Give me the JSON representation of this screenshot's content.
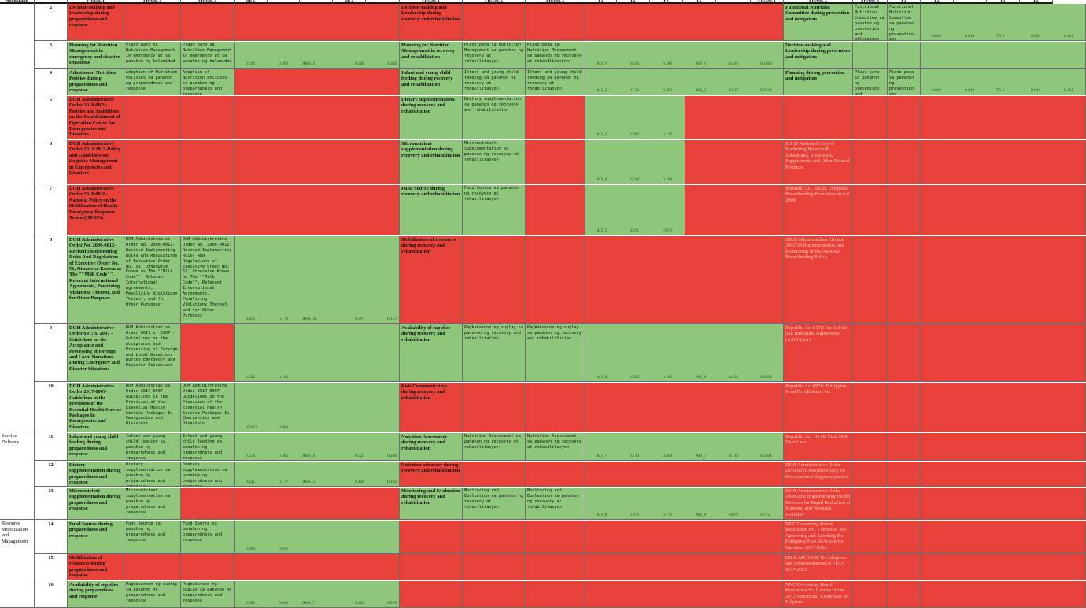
{
  "colors": {
    "green": "#8ec77b",
    "red": "#e8413a",
    "white": "#ffffff",
    "grid": "#6b6b6b",
    "header": "#ffffff"
  },
  "header": [
    "Subdomains",
    "",
    "PHASE 1",
    "PHASE 2",
    "PHASE 3",
    "Int 1",
    "",
    "",
    "Int 2",
    "",
    "PHASE 1",
    "PHASE 2",
    "PHASE 3",
    "P1",
    "P2",
    "P3",
    "P2",
    "",
    "PHASE 1",
    "PHASE 2",
    "PHASE 3",
    "P1",
    "P2",
    "",
    "P1",
    "P2"
  ],
  "subdomains": {
    "service": "Service Delivery",
    "resource": "Resource Mobilization and Management"
  },
  "rows": [
    {
      "n": "2",
      "c": "Decision-making and Leadership during preparedness and response",
      "p2": "",
      "p3": "",
      "v": [
        "",
        "",
        "",
        "",
        ""
      ],
      "d": "Decision-making and Leadership  during recovery and rehabilitation",
      "d2": "",
      "d3": "",
      "w": [
        "",
        "",
        "",
        "",
        "",
        ""
      ],
      "l": "Functional Nutrition Committee during prevention and mitigation",
      "l2": "Functional Nutrition Committee sa panahon ng prevention and mitigation",
      "l3": "Functional Nutrition Committee sa panahon ng prevention and mitigation",
      "x": [
        "0.643",
        "0.414",
        "TS 1",
        "0.649",
        "0.421"
      ]
    },
    {
      "n": "3",
      "c": "Planning for Nutrition Management in emergency and disaster situations",
      "p2": "Plano para sa Nutrition Management in emergency at sa panahon ng kalamidad",
      "p3": "Plano para sa Nutrition Management in emergency at sa panahon ng kalamidad",
      "v": [
        "0.620",
        "0.369",
        "AHS_2",
        "0.598",
        "0.350"
      ],
      "d": "Planning for Nutrition Management in recovery and rehabilitation",
      "d2": "Plano para sa Nutrition Management sa panahon ng recovery at rehabilitasyon",
      "d3": "Plano para sa Nutrition Management sa panahon ng recovery at rehabilitasyon",
      "w": [
        "AD_1",
        "0.435",
        "0.189",
        "AD_1",
        "0.435",
        "0.1889"
      ],
      "l": "Decision-making and Leadership during prevention and mitigation",
      "l2": "",
      "l3": "",
      "x": [
        "",
        "",
        "",
        "",
        ""
      ]
    },
    {
      "n": "4",
      "c": "Adoption  of Nutrition Policies during preparedness and response",
      "p2": "Adoption of Nutrition Policies sa panahon ng preparedness and response",
      "p3": "Adoption of Nutrition Policies sa panahon ng preparedness and response",
      "v": [
        "",
        "",
        "",
        "",
        ""
      ],
      "d": "Infant and young child feeding  during recovery and rehabilitation",
      "d2": "Infant and young child feeding  sa panahon ng recovery at rehabilitasyon",
      "d3": "Infant and young child feeding  sa panahon ng recovery at rehabilitasyon",
      "w": [
        "AD_2",
        "0.513",
        "0.263",
        "AD_2",
        "0.513",
        "0.2634"
      ],
      "l": "Planning during prevention and mitigation",
      "l2": "Plano para sa panahon ng prevention and mitigation",
      "l3": "Plano para sa panahon ng prevention and mitigation",
      "x": [
        "0.643",
        "0.414",
        "TS 1",
        "0.649",
        "0.421"
      ]
    },
    {
      "n": "5",
      "c": "DOH Administrative Order 2010-0029- Policies and Guidelines on the Establishment of Operation Center for Emergencies and Disasters",
      "p2": "",
      "p3": "",
      "v": [
        "",
        "",
        "",
        "",
        ""
      ],
      "d": "Dietary supplementation during recovery and rehabilitation",
      "d2": "Dietary supplementation  sa panahon ng recovery and rehabilitation",
      "d3": "",
      "w": [
        "AD_3",
        "0.363",
        "0.132",
        "",
        "",
        ""
      ],
      "l": "",
      "l2": "",
      "l3": "",
      "x": [
        "",
        "",
        "",
        "",
        ""
      ]
    },
    {
      "n": "6",
      "c": "DOH Administrative Order 2012-2013-Policy and Guidelines on Logistics Management in Emergencies and Disasters",
      "p2": "",
      "p3": "",
      "v": [
        "",
        "",
        "",
        "",
        ""
      ],
      "d": "Micronutrient supplementation  during recovery and rehabilitation",
      "d2": "Micronutrient supplementation  sa panahon ng recovery at rehabilitasyon",
      "d3": "",
      "w": [
        "AD_4",
        "0.328",
        "0.108",
        "",
        "",
        ""
      ],
      "l": "EO 51 National Code of Marketing Breastmilk, Substitutes, Breastmilk, Supplements and Other Related Products",
      "l2": "",
      "l3": "",
      "x": [
        "",
        "",
        "",
        "",
        ""
      ]
    },
    {
      "n": "7",
      "c": "DOH Administrative Order 2018-0018-National Policy on the Mobilization of Health Emergency Response Teams (HERTs)",
      "p2": "",
      "p3": "",
      "v": [
        "",
        "",
        "",
        "",
        ""
      ],
      "d": "Fund Source  during recovery and rehabilitation",
      "d2": "Fund Source sa panahon ng recovery at rehabilitasyon",
      "d3": "",
      "w": [
        "AD_5",
        "0.271",
        "0.073",
        "",
        "",
        ""
      ],
      "l": "Republic Act 10028: Expanded Breastfeeding Promotion Act of 2009",
      "l2": "",
      "l3": "",
      "x": [
        "",
        "",
        "",
        "",
        ""
      ]
    },
    {
      "n": "8",
      "c": "DOH Administrative Order No. 2006-0012-Revised Implementing Rules And Regulations of Executive Order No. 51, Otherwise Known as The \"\"Milk Code\"\", Relevant International Agreements, Penalizing Violations Thereof, and for Other Purposes",
      "p2": "DOH Administrative Order No. 2006-0012-Revised Implementing Rules And Regulations of Executive Order No. 51, Otherwise Known as The \"\"Milk Code\"\", Relevant International Agreements, Penalizing Violations Thereof, and for Other Purposes",
      "p3": "DOH Administrative Order No. 2006-0012-Revised Implementing Rules And Regulations of Executive Order No. 51, Otherwise Known as The \"\"Milk Code\"\", Relevant International Agreements, Penalizing Violations Thereof, and for Other Purposes",
      "v": [
        "0.423",
        "0.179",
        "AHS_3a",
        "0.397",
        "0.157"
      ],
      "d": "Mobilization of resources during recovery and rehabilitation",
      "d2": "",
      "d3": "",
      "w": [
        "",
        "",
        "",
        "",
        "",
        ""
      ],
      "l": "DILG Memorandum Circular 2002-54 Implementation and Monitoring of the National Breastfeeding Policy",
      "l2": "",
      "l3": "",
      "x": [
        "",
        "",
        "",
        "",
        ""
      ]
    },
    {
      "n": "9",
      "c": "DOH Administrative Order 0017 s. 2007 -Guidelines on the Acceptance and Processing of Foreign and Local Donations During Emergency and Disaster Situations",
      "p2": "DOH Administrative Order 0017 s. 2007 -Guidelines on the Acceptance and Processing of Foreign and Local Donations During Emergency and Disaster Situations",
      "p3": "",
      "v": [
        "0.321",
        "0.103",
        "",
        "",
        ""
      ],
      "d": "Availability of supplies during recovery and rehabilitation",
      "d2": "Pagkakaroon ng suplay sa panahon ng recovery and rehabilitation",
      "d3": "Pagkakaroon ng suplay sa panahon ng recovery and rehabilitation",
      "w": [
        "AD_6",
        "0.435",
        "0.189",
        "AD_6",
        "0.435",
        "0.1892"
      ],
      "l": "Republic Act 8172: An Act for Salt Iodization Nationwide (ASIN Law)",
      "l2": "",
      "l3": "",
      "x": [
        "",
        "",
        "",
        "",
        ""
      ]
    },
    {
      "n": "10",
      "c": "DOH Administrative Order 2017-0007-Guidelines in the Provision of the Essential Health Service Packages In Emergencies and Disasters",
      "p2": "DOH Administrative Order 2017-0007-Guidelines in the Provision of the Essential Health Service Packages In Emergencies and Disasters",
      "p3": "DOH Administrative Order 2017-0007-Guidelines in the Provision of the Essential Health Service Packages In Emergencies and Disasters",
      "v": [
        "-0.063",
        "0.004",
        "",
        "",
        ""
      ],
      "d": "Risk Communication during recovery and rehabilitation",
      "d2": "",
      "d3": "",
      "w": [
        "",
        "",
        "",
        "",
        "",
        ""
      ],
      "l": "Republic Act 8976: Philippine Food Fortification Act",
      "l2": "",
      "l3": "",
      "x": [
        "",
        "",
        "",
        "",
        ""
      ]
    },
    {
      "n": "11",
      "c": "Infant and young child feeding during preparedness and response",
      "p2": "Infant and young child feeding sa panahon ng preparedness and response",
      "p3": "Infant and young child feeding sa panahon ng preparedness and response",
      "v": [
        "0.550",
        "0.302",
        "AHS_4",
        "0.529",
        "0.280"
      ],
      "d": "Nutrition Assessment during recovery and rehabilitation",
      "d2": "Nutrition Assessment  sa panahon ng recovery at rehabilitasyon",
      "d3": "Nutrition Assessment  sa panahon ng recovery at rehabilitasyon",
      "w": [
        "AD_7",
        "0.714",
        "0.509",
        "AD_7",
        "0.714",
        "0.5091"
      ],
      "l": "Republic Act 11148: First 1000 Days Law",
      "l2": "",
      "l3": "",
      "x": [
        "",
        "",
        "",
        "",
        ""
      ]
    },
    {
      "n": "12",
      "c": "Dietary supplementation during preparedness and response",
      "p2": "Dietary supplementation sa panahon ng preparedness and response",
      "p3": "Dietary supplementation sa panahon ng preparedness and response",
      "v": [
        "0.421",
        "0.177",
        "AHS_5",
        "0.426",
        "0.182"
      ],
      "d": "Nutrition advocacy  during recovery and rehabilitation",
      "d2": "",
      "d3": "",
      "w": [
        "",
        "",
        "",
        "",
        "",
        ""
      ],
      "l": "DOH Administrative Order 2010-0010 Revised Policy on Micronutrient Supplementation",
      "l2": "",
      "l3": "",
      "x": [
        "",
        "",
        "",
        "",
        ""
      ]
    },
    {
      "n": "13",
      "c": "Micronutrient supplementation during preparedness and response",
      "p2": "Micronutrient supplementation sa panahon ng preparedness and response",
      "p3": "",
      "v": [
        "",
        "",
        "",
        "",
        ""
      ],
      "d": "Monitoring and Evaluation  during recovery and rehabilitation",
      "d2": "Monitoring and Evaluation sa panahon ng recovery at rehabilitasyon",
      "d3": "Monitoring and Evaluation sa panahon ng recovery at rehabilitasyon",
      "w": [
        "AD_8",
        "0.879",
        "0.772",
        "AD_8",
        "0.879",
        "0.772"
      ],
      "l": "DOH Administrative Order 2008-029: Implementing Health Reforms for Rapid Reduction of Maternal and Neonatal Mortality",
      "l2": "",
      "l3": "",
      "x": [
        "",
        "",
        "",
        "",
        ""
      ]
    },
    {
      "n": "14",
      "c": "Fund Source during preparedness and response",
      "p2": "Fund Source sa panahon ng preparedness and response",
      "p3": "Fund Source sa panahon ng preparedness and response",
      "v": [
        "0.269",
        "0.072",
        "",
        "",
        ""
      ],
      "d": "",
      "d2": "",
      "d3": "",
      "w": [
        "",
        "",
        "",
        "",
        "",
        ""
      ],
      "l": "NNC Governing Board Resolution No. 1 series of 2017 Approving and Adopting the Philippine Plan of Action for Nutrition 2017-2022",
      "l2": "",
      "l3": "",
      "x": [
        "",
        "",
        "",
        "",
        ""
      ]
    },
    {
      "n": "15",
      "c": "Mobilization of resources during preparedness and response",
      "p2": "",
      "p3": "",
      "v": [
        "",
        "",
        "",
        "",
        ""
      ],
      "d": "",
      "d2": "",
      "d3": "",
      "w": [
        "",
        "",
        "",
        "",
        "",
        ""
      ],
      "l": "DILG  MC 2018-42: Adoption and Implementation of PPAN 2017-2022",
      "l2": "",
      "l3": "",
      "x": [
        "",
        "",
        "",
        "",
        ""
      ]
    },
    {
      "n": "16",
      "c": "Availability of supplies during preparedness and response",
      "p2": "Pagkakaroon ng suplay sa panahon ng preparedness and response",
      "p3": "Pagkakaroon ng suplay sa panahon ng preparedness and response",
      "v": [
        "0.301",
        "0.090",
        "AHS_7",
        "0.282",
        "0.079"
      ],
      "d": "",
      "d2": "",
      "d3": "",
      "w": [
        "",
        "",
        "",
        "",
        "",
        ""
      ],
      "l": "NNC Governing Board Resolution No 6 series of the 2012 Nutritional Guidelines for Filipinos",
      "l2": "",
      "l3": "",
      "x": [
        "",
        "",
        "",
        "",
        ""
      ]
    }
  ],
  "fills": [
    {
      "c": "r",
      "p2": "r",
      "p3": "r",
      "i": "r",
      "d": "r",
      "d2": "r",
      "d3": "r",
      "w": "r",
      "l": "g",
      "l2": "g",
      "l3": "g",
      "x": "g"
    },
    {
      "c": "g",
      "p2": "g",
      "p3": "g",
      "i": "g",
      "d": "g",
      "d2": "g",
      "d3": "g",
      "w": "g",
      "l": "g",
      "l2": "g",
      "l3": "g",
      "x": "g"
    },
    {
      "c": "g",
      "p2": "g",
      "p3": "g",
      "i": "r",
      "d": "g",
      "d2": "g",
      "d3": "g",
      "w": "g",
      "l": "g",
      "l2": "g",
      "l3": "g",
      "x": "g"
    },
    {
      "c": "r",
      "p2": "r",
      "p3": "r",
      "i": "r",
      "d": "g",
      "d2": "g",
      "d3": "r",
      "w": "gp",
      "l": "r",
      "l2": "r",
      "l3": "r",
      "x": "r"
    },
    {
      "c": "r",
      "p2": "r",
      "p3": "r",
      "i": "r",
      "d": "g",
      "d2": "g",
      "d3": "r",
      "w": "gp",
      "l": "r",
      "l2": "r",
      "l3": "r",
      "x": "r"
    },
    {
      "c": "r",
      "p2": "r",
      "p3": "r",
      "i": "r",
      "d": "g",
      "d2": "g",
      "d3": "r",
      "w": "gp",
      "l": "r",
      "l2": "r",
      "l3": "r",
      "x": "r"
    },
    {
      "c": "g",
      "p2": "g",
      "p3": "g",
      "i": "g",
      "d": "r",
      "d2": "r",
      "d3": "r",
      "w": "r",
      "l": "r",
      "l2": "r",
      "l3": "r",
      "x": "r"
    },
    {
      "c": "g",
      "p2": "g",
      "p3": "r",
      "i": "gp",
      "d": "g",
      "d2": "g",
      "d3": "g",
      "w": "g",
      "l": "r",
      "l2": "r",
      "l3": "r",
      "x": "r"
    },
    {
      "c": "g",
      "p2": "g",
      "p3": "g",
      "i": "gp",
      "d": "r",
      "d2": "r",
      "d3": "r",
      "w": "r",
      "l": "r",
      "l2": "r",
      "l3": "r",
      "x": "r"
    },
    {
      "c": "g",
      "p2": "g",
      "p3": "g",
      "i": "g",
      "d": "g",
      "d2": "g",
      "d3": "g",
      "w": "g",
      "l": "r",
      "l2": "r",
      "l3": "r",
      "x": "r"
    },
    {
      "c": "g",
      "p2": "g",
      "p3": "g",
      "i": "g",
      "d": "r",
      "d2": "r",
      "d3": "r",
      "w": "r",
      "l": "r",
      "l2": "r",
      "l3": "r",
      "x": "r"
    },
    {
      "c": "g",
      "p2": "g",
      "p3": "r",
      "i": "r",
      "d": "g",
      "d2": "g",
      "d3": "g",
      "w": "g",
      "l": "r",
      "l2": "r",
      "l3": "r",
      "x": "r"
    },
    {
      "c": "g",
      "p2": "g",
      "p3": "g",
      "i": "gp",
      "d": "r",
      "d2": "r",
      "d3": "r",
      "w": "r",
      "l": "r",
      "l2": "r",
      "l3": "r",
      "x": "r"
    },
    {
      "c": "r",
      "p2": "r",
      "p3": "r",
      "i": "r",
      "d": "r",
      "d2": "r",
      "d3": "r",
      "w": "r",
      "l": "r",
      "l2": "r",
      "l3": "r",
      "x": "r"
    },
    {
      "c": "g",
      "p2": "g",
      "p3": "g",
      "i": "g",
      "d": "r",
      "d2": "r",
      "d3": "r",
      "w": "r",
      "l": "r",
      "l2": "r",
      "l3": "r",
      "x": "r"
    }
  ]
}
